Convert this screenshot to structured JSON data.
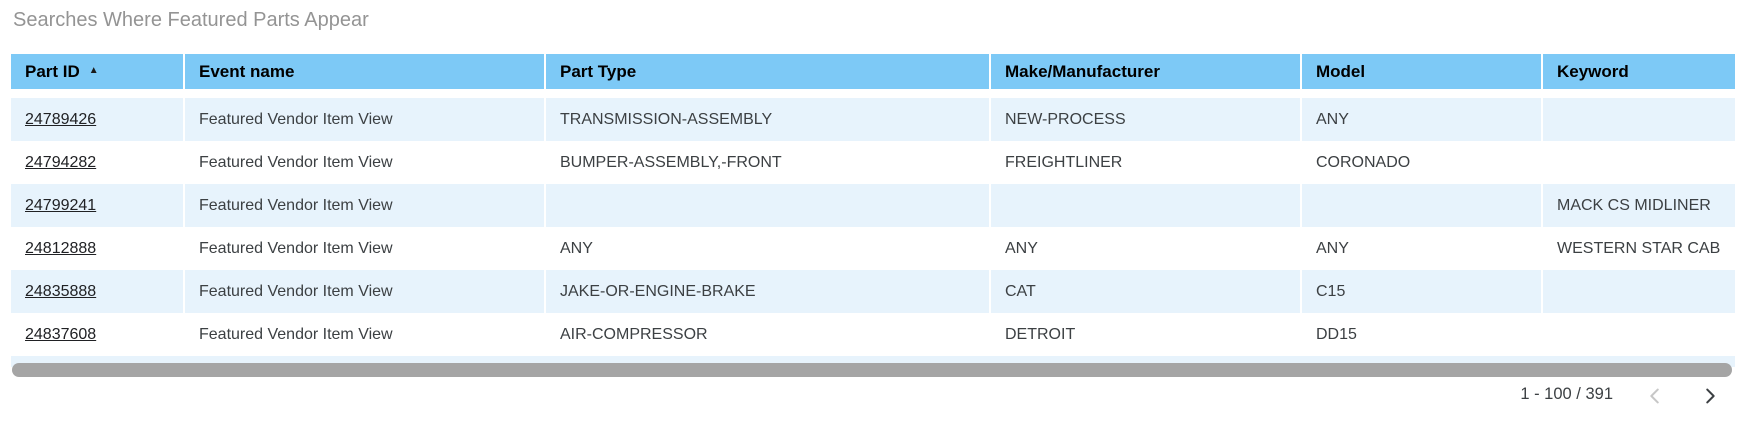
{
  "title": "Searches Where Featured Parts Appear",
  "table": {
    "sort_asc_icon": "▲",
    "columns": [
      {
        "label": "Part ID",
        "sorted": "asc"
      },
      {
        "label": "Event name"
      },
      {
        "label": "Part Type"
      },
      {
        "label": "Make/Manufacturer"
      },
      {
        "label": "Model"
      },
      {
        "label": "Keyword"
      }
    ],
    "rows": [
      [
        "24789426",
        "Featured Vendor Item View",
        "TRANSMISSION-ASSEMBLY",
        "NEW-PROCESS",
        "ANY",
        ""
      ],
      [
        "24794282",
        "Featured Vendor Item View",
        "BUMPER-ASSEMBLY,-FRONT",
        "FREIGHTLINER",
        "CORONADO",
        ""
      ],
      [
        "24799241",
        "Featured Vendor Item View",
        "",
        "",
        "",
        "MACK CS MIDLINER"
      ],
      [
        "24812888",
        "Featured Vendor Item View",
        "ANY",
        "ANY",
        "ANY",
        "WESTERN STAR CAB"
      ],
      [
        "24835888",
        "Featured Vendor Item View",
        "JAKE-OR-ENGINE-BRAKE",
        "CAT",
        "C15",
        ""
      ],
      [
        "24837608",
        "Featured Vendor Item View",
        "AIR-COMPRESSOR",
        "DETROIT",
        "DD15",
        ""
      ]
    ]
  },
  "pagination": {
    "range_label": "1 - 100 / 391",
    "prev_icon": "chevron-left",
    "next_icon": "chevron-right"
  },
  "colors": {
    "header_bg": "#7DC9F6",
    "row_alt_bg": "#E7F3FC",
    "title_text": "#949494",
    "body_text": "#3C4043",
    "scrollbar": "#A5A5A5",
    "pagination_text": "#3C4043",
    "chevron_disabled": "#C7C7C7",
    "chevron_enabled": "#3C4043"
  }
}
